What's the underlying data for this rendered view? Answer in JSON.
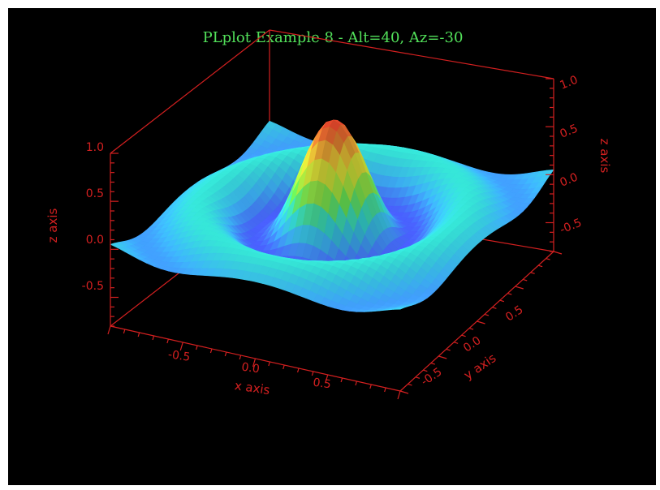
{
  "chart_data": {
    "type": "surface3d",
    "title": "PLplot Example 8 - Alt=40, Az=-30",
    "xlabel": "x axis",
    "ylabel": "y axis",
    "zlabel": "z axis",
    "xlim": [
      -1,
      1
    ],
    "ylim": [
      -1,
      1
    ],
    "zlim": [
      -0.8,
      1.0
    ],
    "x_ticks": [
      "-0.5",
      "0.0",
      "0.5"
    ],
    "y_ticks": [
      "-0.5",
      "0.0",
      "0.5"
    ],
    "z_ticks_left": [
      "1.0",
      "0.5",
      "0.0",
      "-0.5"
    ],
    "z_ticks_right": [
      "1.0",
      "0.5",
      "0.0",
      "-0.5"
    ],
    "altitude": 40,
    "azimuth": -30,
    "surface": "z = sin(pi*r)/(pi*r) with r = 3*sqrt(x^2+y^2), sampled on a 41x41 grid",
    "colormap": [
      "#4a5cff",
      "#3fb7ff",
      "#36e8d8",
      "#6cf25a",
      "#c6f23c",
      "#f7e43a",
      "#f08a33",
      "#e0372a"
    ],
    "grid": false
  },
  "colors": {
    "background": "#000000",
    "title": "#52e05a",
    "axes": "#d42020"
  }
}
